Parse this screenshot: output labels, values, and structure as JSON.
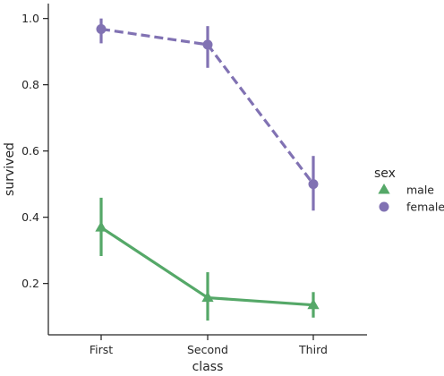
{
  "chart_data": {
    "type": "line",
    "xlabel": "class",
    "ylabel": "survived",
    "categories": [
      "First",
      "Second",
      "Third"
    ],
    "ylim": [
      0.045,
      1.045
    ],
    "yticks": [
      "0.2",
      "0.4",
      "0.6",
      "0.8",
      "1.0"
    ],
    "grid": false,
    "legend": {
      "title": "sex",
      "placement": "right",
      "entries": [
        "male",
        "female"
      ]
    },
    "series": [
      {
        "name": "male",
        "color": "#55a868",
        "marker": "triangle",
        "line_style": "solid",
        "values": [
          0.369,
          0.157,
          0.135
        ],
        "ci_low": [
          0.283,
          0.088,
          0.097
        ],
        "ci_high": [
          0.459,
          0.234,
          0.174
        ]
      },
      {
        "name": "female",
        "color": "#8172b3",
        "marker": "circle",
        "line_style": "dashed",
        "values": [
          0.968,
          0.921,
          0.5
        ],
        "ci_low": [
          0.925,
          0.851,
          0.42
        ],
        "ci_high": [
          1.0,
          0.977,
          0.585
        ]
      }
    ]
  }
}
